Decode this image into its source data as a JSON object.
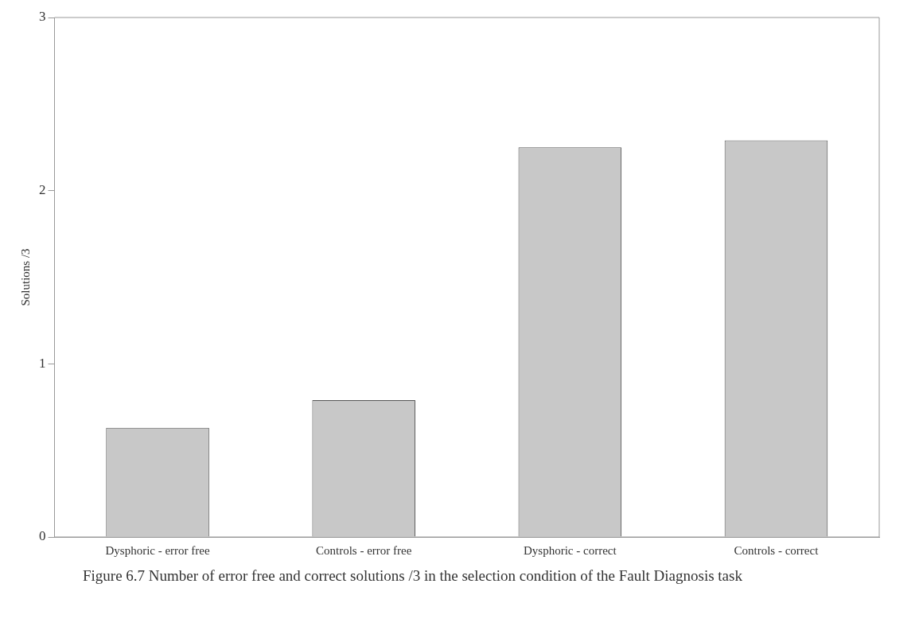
{
  "chart_data": {
    "type": "bar",
    "ylabel": "Solutions /3",
    "categories": [
      "Dysphoric - error free",
      "Controls - error free",
      "Dysphoric - correct",
      "Controls - correct"
    ],
    "values": [
      0.63,
      0.79,
      2.25,
      2.29
    ],
    "color": "#c8c8c8",
    "ylim": [
      0,
      3
    ],
    "yticks": [
      0,
      1,
      2,
      3
    ],
    "grid": false,
    "legend": false,
    "annotations": [
      "Figure 6.7 Number of error free and correct solutions /3 in the selection condition of the Fault Diagnosis task"
    ]
  }
}
